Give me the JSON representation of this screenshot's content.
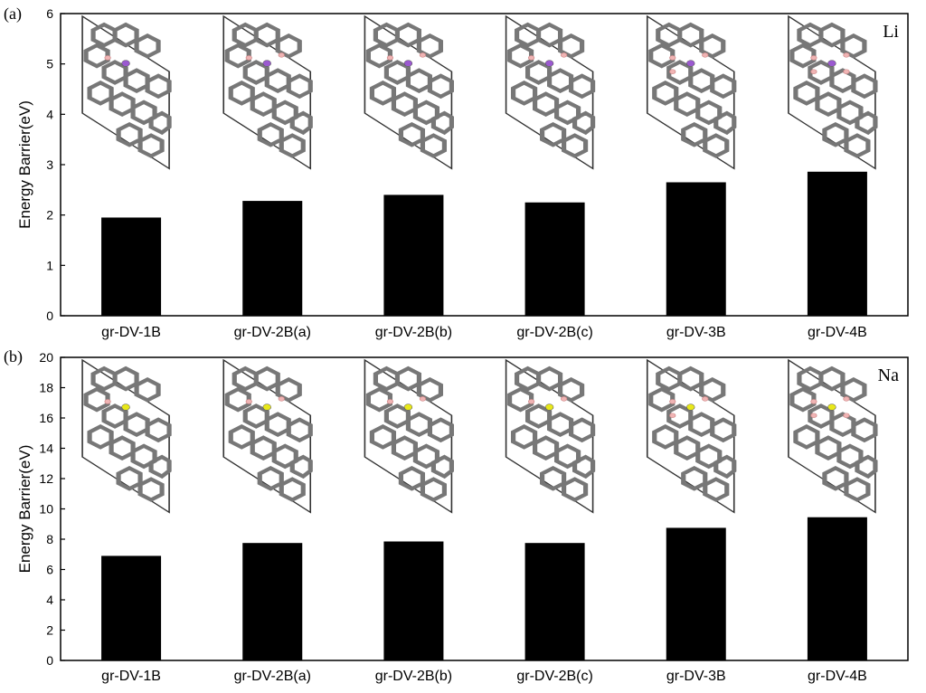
{
  "chart_data": [
    {
      "type": "bar",
      "panel": "(a)",
      "annotation": "Li",
      "ylabel": "Energy Barrier(eV)",
      "ylim": [
        0,
        6
      ],
      "yticks": [
        0,
        1,
        2,
        3,
        4,
        5,
        6
      ],
      "categories": [
        "gr-DV-1B",
        "gr-DV-2B(a)",
        "gr-DV-2B(b)",
        "gr-DV-2B(c)",
        "gr-DV-3B",
        "gr-DV-4B"
      ],
      "values": [
        1.95,
        2.28,
        2.4,
        2.25,
        2.65,
        2.86
      ],
      "bar_color": "#000000",
      "ion_color": "#9b59d0",
      "boron_counts": [
        1,
        2,
        2,
        2,
        3,
        4
      ]
    },
    {
      "type": "bar",
      "panel": "(b)",
      "annotation": "Na",
      "ylabel": "Energy Barrier(eV)",
      "ylim": [
        0,
        20
      ],
      "yticks": [
        0,
        2,
        4,
        6,
        8,
        10,
        12,
        14,
        16,
        18,
        20
      ],
      "categories": [
        "gr-DV-1B",
        "gr-DV-2B(a)",
        "gr-DV-2B(b)",
        "gr-DV-2B(c)",
        "gr-DV-3B",
        "gr-DV-4B"
      ],
      "values": [
        6.9,
        7.75,
        7.85,
        7.75,
        8.75,
        9.45
      ],
      "bar_color": "#000000",
      "ion_color": "#e8e81a",
      "boron_counts": [
        1,
        2,
        2,
        2,
        3,
        4
      ]
    }
  ]
}
